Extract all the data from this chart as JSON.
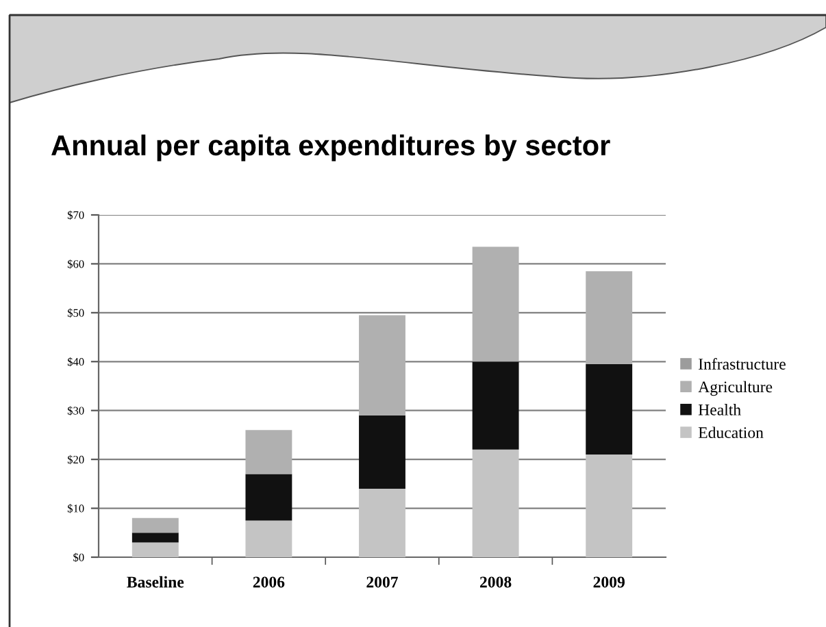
{
  "chart_data": {
    "type": "bar",
    "title": "Annual per capita expenditures by sector",
    "categories": [
      "Baseline",
      "2006",
      "2007",
      "2008",
      "2009"
    ],
    "stacked": true,
    "series": [
      {
        "name": "Education",
        "color": "#c4c4c4",
        "values": [
          3,
          7.5,
          14,
          22,
          21
        ]
      },
      {
        "name": "Health",
        "color": "#111111",
        "values": [
          2,
          9.5,
          15,
          18,
          18.5
        ]
      },
      {
        "name": "Agriculture",
        "color": "#b0b0b0",
        "values": [
          3,
          9,
          20.5,
          23.5,
          19
        ]
      },
      {
        "name": "Infrastructure",
        "color": "#9c9c9c",
        "values": [
          null,
          null,
          null,
          null,
          null
        ]
      }
    ],
    "ylim": [
      0,
      70
    ],
    "yticks": [
      {
        "value": 0,
        "label": "$0"
      },
      {
        "value": 10,
        "label": "$10"
      },
      {
        "value": 20,
        "label": "$20"
      },
      {
        "value": 30,
        "label": "$30"
      },
      {
        "value": 40,
        "label": "$40"
      },
      {
        "value": 50,
        "label": "$50"
      },
      {
        "value": 60,
        "label": "$60"
      },
      {
        "value": 70,
        "label": "$70"
      }
    ],
    "grid": "y",
    "legend": "right"
  }
}
